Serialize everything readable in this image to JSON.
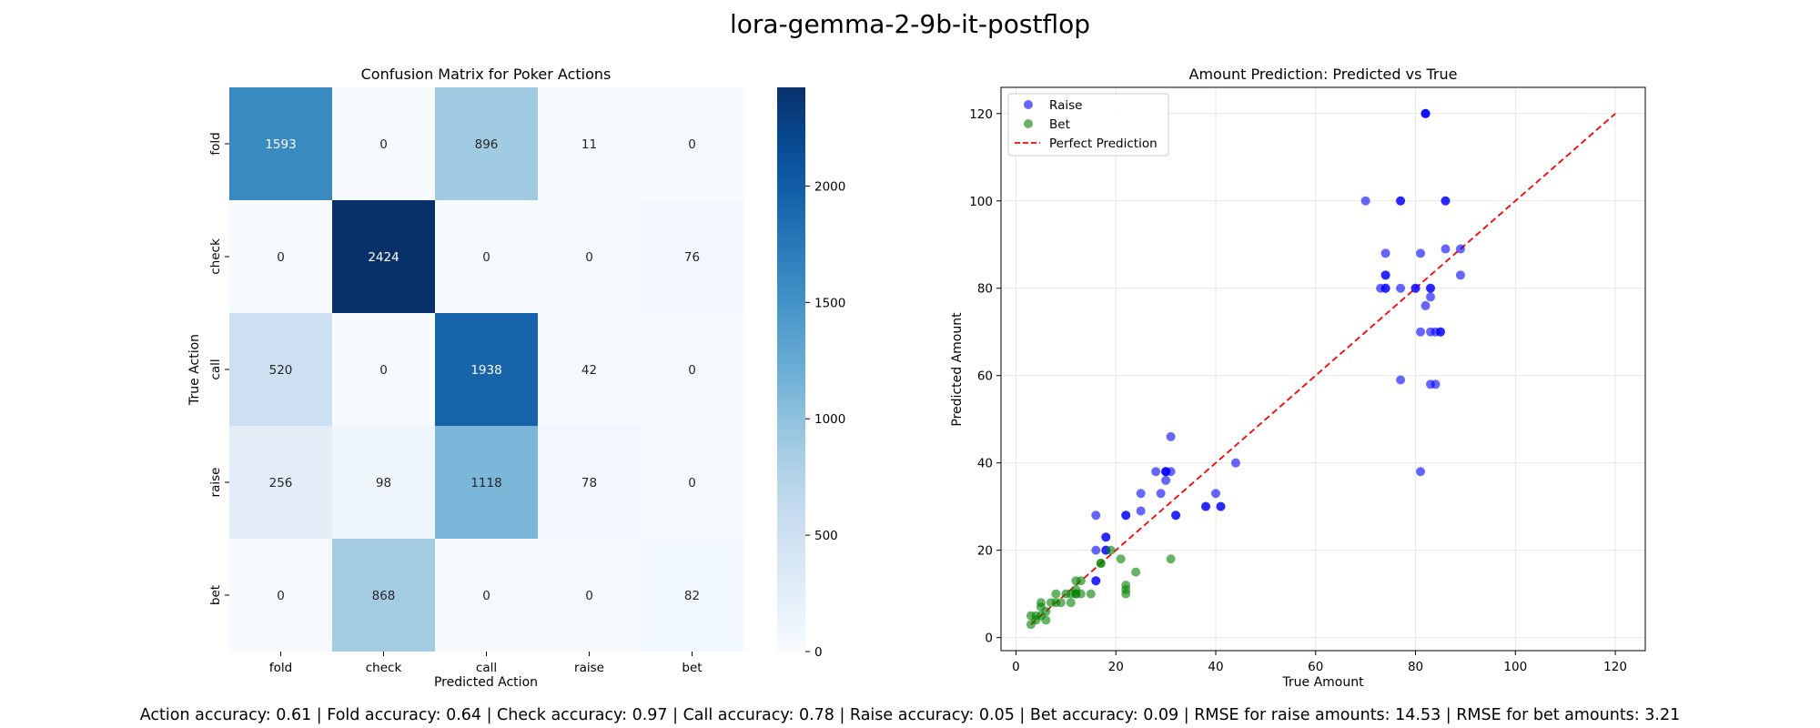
{
  "figure": {
    "suptitle": "lora-gemma-2-9b-it-postflop",
    "footer": "Action accuracy: 0.61 | Fold accuracy: 0.64 | Check accuracy: 0.97 | Call accuracy: 0.78 | Raise accuracy: 0.05 | Bet accuracy: 0.09 | RMSE for raise amounts: 14.53 | RMSE for bet amounts: 3.21"
  },
  "chart_data": [
    {
      "type": "heatmap",
      "title": "Confusion Matrix for Poker Actions",
      "xlabel": "Predicted Action",
      "ylabel": "True Action",
      "x_categories": [
        "fold",
        "check",
        "call",
        "raise",
        "bet"
      ],
      "y_categories": [
        "fold",
        "check",
        "call",
        "raise",
        "bet"
      ],
      "values": [
        [
          1593,
          0,
          896,
          11,
          0
        ],
        [
          0,
          2424,
          0,
          0,
          76
        ],
        [
          520,
          0,
          1938,
          42,
          0
        ],
        [
          256,
          98,
          1118,
          78,
          0
        ],
        [
          0,
          868,
          0,
          0,
          82
        ]
      ],
      "colormap": "Blues",
      "vmin": 0,
      "vmax": 2424,
      "colorbar_ticks": [
        0,
        500,
        1000,
        1500,
        2000
      ]
    },
    {
      "type": "scatter",
      "title": "Amount Prediction: Predicted vs True",
      "xlabel": "True Amount",
      "ylabel": "Predicted Amount",
      "xlim": [
        -3,
        126
      ],
      "ylim": [
        -3,
        126
      ],
      "x_ticks": [
        0,
        20,
        40,
        60,
        80,
        100,
        120
      ],
      "y_ticks": [
        0,
        20,
        40,
        60,
        80,
        100,
        120
      ],
      "grid": true,
      "legend_position": "top-left",
      "series": [
        {
          "name": "Raise",
          "color": "#0000ff",
          "points": [
            [
              82,
              120
            ],
            [
              82,
              120
            ],
            [
              82,
              120
            ],
            [
              70,
              100
            ],
            [
              77,
              100
            ],
            [
              77,
              100
            ],
            [
              86,
              100
            ],
            [
              86,
              100
            ],
            [
              74,
              88
            ],
            [
              81,
              88
            ],
            [
              86,
              89
            ],
            [
              89,
              89
            ],
            [
              74,
              83
            ],
            [
              74,
              83
            ],
            [
              89,
              83
            ],
            [
              73,
              80
            ],
            [
              74,
              80
            ],
            [
              74,
              80
            ],
            [
              77,
              80
            ],
            [
              80,
              80
            ],
            [
              80,
              80
            ],
            [
              83,
              80
            ],
            [
              83,
              80
            ],
            [
              83,
              78
            ],
            [
              82,
              76
            ],
            [
              81,
              70
            ],
            [
              83,
              70
            ],
            [
              84,
              70
            ],
            [
              85,
              70
            ],
            [
              85,
              70
            ],
            [
              77,
              59
            ],
            [
              83,
              58
            ],
            [
              84,
              58
            ],
            [
              81,
              38
            ],
            [
              31,
              46
            ],
            [
              44,
              40
            ],
            [
              28,
              38
            ],
            [
              30,
              38
            ],
            [
              30,
              38
            ],
            [
              31,
              38
            ],
            [
              30,
              36
            ],
            [
              25,
              33
            ],
            [
              29,
              33
            ],
            [
              40,
              33
            ],
            [
              38,
              30
            ],
            [
              38,
              30
            ],
            [
              41,
              30
            ],
            [
              41,
              30
            ],
            [
              25,
              29
            ],
            [
              30,
              38
            ],
            [
              16,
              28
            ],
            [
              22,
              28
            ],
            [
              22,
              28
            ],
            [
              32,
              28
            ],
            [
              32,
              28
            ],
            [
              18,
              23
            ],
            [
              18,
              23
            ],
            [
              16,
              20
            ],
            [
              18,
              20
            ],
            [
              16,
              13
            ],
            [
              16,
              13
            ],
            [
              18,
              20
            ]
          ]
        },
        {
          "name": "Bet",
          "color": "#008000",
          "points": [
            [
              3,
              3
            ],
            [
              3,
              5
            ],
            [
              4,
              4
            ],
            [
              4,
              5
            ],
            [
              5,
              5
            ],
            [
              5,
              7
            ],
            [
              5,
              8
            ],
            [
              6,
              4
            ],
            [
              6,
              6
            ],
            [
              7,
              8
            ],
            [
              8,
              8
            ],
            [
              8,
              10
            ],
            [
              9,
              8
            ],
            [
              10,
              10
            ],
            [
              11,
              10
            ],
            [
              11,
              8
            ],
            [
              12,
              10
            ],
            [
              12,
              11
            ],
            [
              12,
              13
            ],
            [
              13,
              10
            ],
            [
              13,
              13
            ],
            [
              15,
              10
            ],
            [
              17,
              17
            ],
            [
              19,
              20
            ],
            [
              21,
              18
            ],
            [
              22,
              12
            ],
            [
              22,
              10
            ],
            [
              22,
              11
            ],
            [
              24,
              15
            ],
            [
              31,
              18
            ],
            [
              17,
              17
            ],
            [
              12,
              10
            ]
          ]
        },
        {
          "name": "Perfect Prediction",
          "type": "line",
          "style": "dashed",
          "color": "#ff0000",
          "points": [
            [
              3,
              3
            ],
            [
              120,
              120
            ]
          ]
        }
      ]
    }
  ]
}
